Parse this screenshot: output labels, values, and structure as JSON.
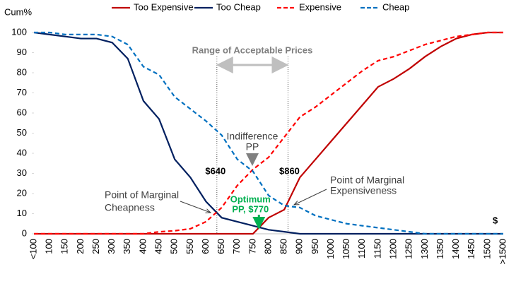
{
  "chart_data": {
    "type": "line",
    "y_label": "Cum%",
    "x_label": "$",
    "categories": [
      "<100",
      "100",
      "150",
      "200",
      "250",
      "300",
      "350",
      "400",
      "450",
      "500",
      "550",
      "600",
      "650",
      "700",
      "750",
      "800",
      "850",
      "900",
      "950",
      "1000",
      "1050",
      "1100",
      "1150",
      "1200",
      "1250",
      "1300",
      "1350",
      "1400",
      "1450",
      "1500",
      ">1500"
    ],
    "xlim": [
      50,
      1550
    ],
    "ylim": [
      0,
      100
    ],
    "yticks": [
      0,
      10,
      20,
      30,
      40,
      50,
      60,
      70,
      80,
      90,
      100
    ],
    "series": [
      {
        "name": "Too Expensive",
        "color": "#c00000",
        "dashed": false,
        "values": [
          0,
          0,
          0,
          0,
          0,
          0,
          0,
          0,
          0,
          0,
          0,
          0,
          0,
          0,
          0,
          8,
          12,
          28,
          37,
          46,
          55,
          64,
          73,
          77,
          82,
          88,
          93,
          97,
          99,
          100,
          100
        ]
      },
      {
        "name": "Too Cheap",
        "color": "#002060",
        "dashed": false,
        "values": [
          100,
          99,
          98,
          97,
          97,
          95,
          87,
          66,
          57,
          37,
          28,
          16,
          8,
          6,
          4,
          2,
          1,
          0,
          0,
          0,
          0,
          0,
          0,
          0,
          0,
          0,
          0,
          0,
          0,
          0,
          0
        ]
      },
      {
        "name": "Expensive",
        "color": "#ff0000",
        "dashed": true,
        "values": [
          0,
          0,
          0,
          0,
          0,
          0,
          0,
          0,
          1,
          1.5,
          2.5,
          6,
          13,
          24,
          32,
          38,
          48,
          58,
          63,
          69,
          75,
          81,
          86,
          88,
          91,
          94,
          96,
          98,
          99,
          100,
          100
        ]
      },
      {
        "name": "Cheap",
        "color": "#0070c0",
        "dashed": true,
        "values": [
          100,
          100,
          99,
          99,
          99,
          98,
          94,
          83,
          79,
          68,
          62,
          56,
          49,
          37,
          31,
          19,
          14,
          13,
          9,
          7,
          5,
          4,
          3,
          2,
          1,
          0,
          0,
          0,
          0,
          0,
          0
        ]
      }
    ],
    "range": {
      "label": "Range of Acceptable Prices",
      "lower": {
        "value": 640,
        "label": "$640"
      },
      "upper": {
        "value": 860,
        "label": "$860"
      }
    },
    "optimum": {
      "value": 770,
      "label": [
        "Optimum",
        "PP, $770"
      ]
    },
    "indifference": {
      "label": [
        "Indifference",
        "PP"
      ]
    },
    "marginal_cheapness": {
      "label": [
        "Point of Marginal",
        "Cheapness"
      ]
    },
    "marginal_expensiveness": {
      "label": [
        "Point of Marginal",
        "Expensiveness"
      ]
    }
  }
}
